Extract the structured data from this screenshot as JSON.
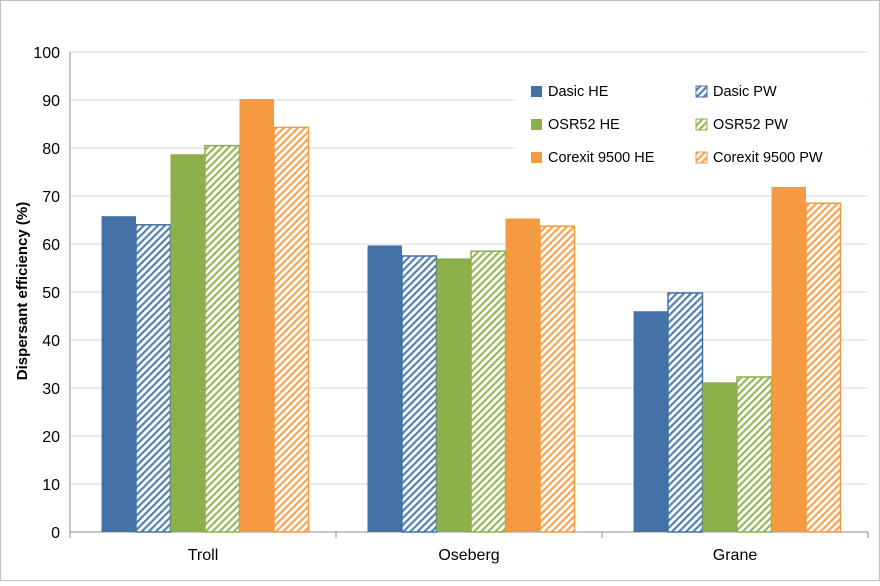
{
  "chart_data": {
    "type": "bar",
    "title": "",
    "xlabel": "",
    "ylabel": "Dispersant efficiency (%)",
    "ylim": [
      0,
      100
    ],
    "yticks": [
      0,
      10,
      20,
      30,
      40,
      50,
      60,
      70,
      80,
      90,
      100
    ],
    "grid": true,
    "legend_position": "top-right",
    "categories": [
      "Troll",
      "Oseberg",
      "Grane"
    ],
    "series": [
      {
        "name": "Dasic HE",
        "values": [
          65.8,
          59.7,
          46.0
        ],
        "color": "#4472a8",
        "pattern": "solid"
      },
      {
        "name": "Dasic PW",
        "values": [
          64.0,
          57.5,
          49.8
        ],
        "color": "#4472a8",
        "pattern": "hatched"
      },
      {
        "name": "OSR52 HE",
        "values": [
          78.7,
          57.0,
          31.2
        ],
        "color": "#8cb04a",
        "pattern": "solid"
      },
      {
        "name": "OSR52 PW",
        "values": [
          80.5,
          58.5,
          32.3
        ],
        "color": "#8cb04a",
        "pattern": "hatched"
      },
      {
        "name": "Corexit 9500 HE",
        "values": [
          90.2,
          65.3,
          72.7
        ],
        "color": "#f59a40",
        "pattern": "solid"
      },
      {
        "name": "Corexit 9500 PW",
        "values": [
          84.3,
          63.7,
          68.5
        ],
        "color": "#f59a40",
        "pattern": "hatched"
      }
    ]
  }
}
